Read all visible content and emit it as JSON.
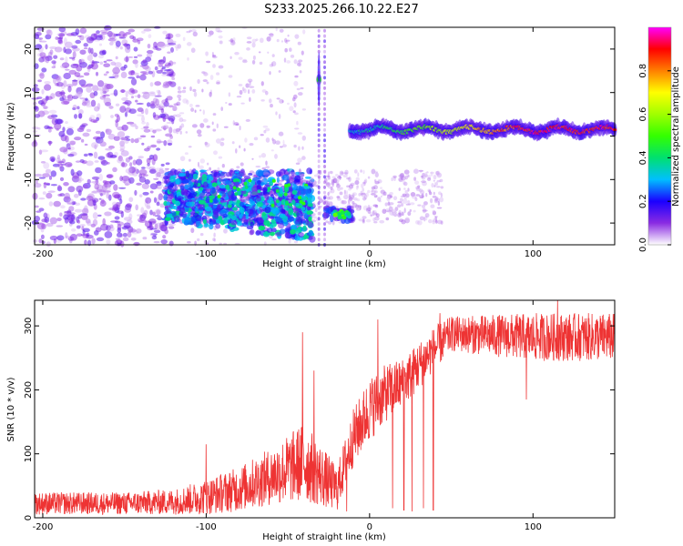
{
  "title": "S233.2025.266.10.22.E27",
  "chart_data": [
    {
      "type": "heatmap",
      "xlabel": "Height of straight line (km)",
      "ylabel": "Frequency (Hz)",
      "xlim": [
        -205,
        150
      ],
      "ylim": [
        -25,
        25
      ],
      "x_ticks": [
        -200,
        -100,
        0,
        100
      ],
      "y_ticks": [
        -20,
        -10,
        0,
        10,
        20
      ],
      "colorbar": {
        "label": "Normalized spectral amplitude",
        "range": [
          0,
          1
        ],
        "ticks": [
          0.0,
          0.2,
          0.4,
          0.6,
          0.8
        ]
      },
      "features": [
        {
          "description": "scattered noise",
          "x_range": [
            -205,
            -120
          ],
          "freq_range": [
            -25,
            25
          ],
          "amplitude": 0.12
        },
        {
          "description": "lower band",
          "x_range": [
            -125,
            -35
          ],
          "freq_range": [
            -20,
            -8
          ],
          "amplitude": 0.3
        },
        {
          "description": "spot",
          "x": -31,
          "freq": 13,
          "amplitude": 0.5
        },
        {
          "description": "spot cluster",
          "x_range": [
            -27,
            -10
          ],
          "freq": -18,
          "amplitude": 0.5
        },
        {
          "description": "carrier line",
          "x_range": [
            -12,
            150
          ],
          "freq": 1.5,
          "amplitude_start": 0.3,
          "amplitude_end": 0.9
        }
      ]
    },
    {
      "type": "line",
      "xlabel": "Height of straight line (km)",
      "ylabel": "SNR (10 * v/v)",
      "xlim": [
        -205,
        150
      ],
      "ylim": [
        0,
        340
      ],
      "x_ticks": [
        -200,
        -100,
        0,
        100
      ],
      "y_ticks": [
        0,
        100,
        200,
        300
      ],
      "color": "#ee3333",
      "envelope": [
        {
          "x": -205,
          "low": 5,
          "high": 40
        },
        {
          "x": -150,
          "low": 5,
          "high": 40
        },
        {
          "x": -120,
          "low": 5,
          "high": 45
        },
        {
          "x": -100,
          "low": 5,
          "high": 60
        },
        {
          "x": -80,
          "low": 10,
          "high": 80
        },
        {
          "x": -60,
          "low": 20,
          "high": 110
        },
        {
          "x": -40,
          "low": 25,
          "high": 150
        },
        {
          "x": -20,
          "low": 10,
          "high": 80
        },
        {
          "x": -10,
          "low": 80,
          "high": 170
        },
        {
          "x": 0,
          "low": 120,
          "high": 220
        },
        {
          "x": 10,
          "low": 150,
          "high": 240
        },
        {
          "x": 20,
          "low": 170,
          "high": 250
        },
        {
          "x": 30,
          "low": 200,
          "high": 275
        },
        {
          "x": 40,
          "low": 230,
          "high": 300
        },
        {
          "x": 50,
          "low": 260,
          "high": 315
        },
        {
          "x": 100,
          "low": 245,
          "high": 320
        },
        {
          "x": 150,
          "low": 245,
          "high": 320
        }
      ],
      "spikes": [
        {
          "x": -100,
          "value": 115
        },
        {
          "x": -41,
          "value": 290
        },
        {
          "x": -34,
          "value": 230
        },
        {
          "x": 5,
          "value": 310
        },
        {
          "x": 43,
          "value": 320
        },
        {
          "x": 115,
          "value": 345
        }
      ],
      "dropouts": [
        {
          "x": -14,
          "value": 10
        },
        {
          "x": 14,
          "value": 15
        },
        {
          "x": 21,
          "value": 12
        },
        {
          "x": 26,
          "value": 10
        },
        {
          "x": 33,
          "value": 15
        },
        {
          "x": 39,
          "value": 12
        },
        {
          "x": 96,
          "value": 185
        }
      ]
    }
  ]
}
